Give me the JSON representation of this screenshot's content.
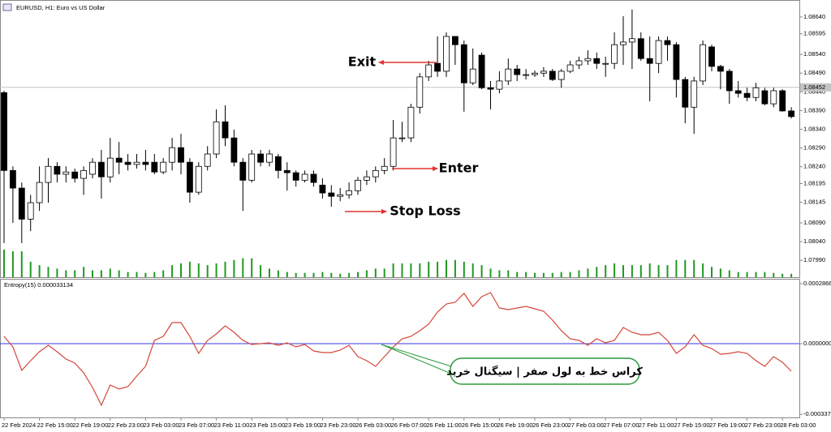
{
  "chart_data": [
    {
      "type": "candlestick",
      "title": "EURUSD, H1:  Euro vs US Dollar",
      "open": [
        1.08438,
        1.0823,
        1.08183,
        1.081,
        1.08144,
        1.08198,
        1.08241,
        1.0822,
        1.08226,
        1.08209,
        1.0822,
        1.08252,
        1.08213,
        1.08263,
        1.08252,
        1.08246,
        1.08252,
        1.08252,
        1.08226,
        1.08252,
        1.08291,
        1.08252,
        1.08172,
        1.08241,
        1.08274,
        1.0836,
        1.08317,
        1.08252,
        1.08204,
        1.08274,
        1.08252,
        1.08267,
        1.0823,
        1.08224,
        1.08204,
        1.0822,
        1.08191,
        1.0817,
        1.08161,
        1.08165,
        1.08176,
        1.08204,
        1.08213,
        1.0823,
        1.08241,
        1.08317,
        1.08317,
        1.08399,
        1.0848,
        1.08516,
        1.08495,
        1.08588,
        1.08566,
        1.08464,
        1.08538,
        1.08451,
        1.08447,
        1.08469,
        1.08501,
        1.08486,
        1.08486,
        1.0849,
        1.08495,
        1.08473,
        1.08495,
        1.08512,
        1.08523,
        1.08529,
        1.08516,
        1.08516,
        1.08566,
        1.08573,
        1.08582,
        1.08529,
        1.08516,
        1.08577,
        1.08566,
        1.08473,
        1.08399,
        1.08469,
        1.0856,
        1.08508,
        1.08495,
        1.08443,
        1.08436,
        1.08425,
        1.08443,
        1.08408,
        1.08443,
        1.08389
      ],
      "high": [
        1.08443,
        1.08241,
        1.08198,
        1.08165,
        1.08241,
        1.08263,
        1.08252,
        1.08241,
        1.08235,
        1.08241,
        1.08263,
        1.08285,
        1.08317,
        1.08306,
        1.08274,
        1.08274,
        1.08285,
        1.08274,
        1.08263,
        1.08317,
        1.08328,
        1.08263,
        1.08252,
        1.08295,
        1.08393,
        1.08404,
        1.08339,
        1.08263,
        1.08285,
        1.08285,
        1.08285,
        1.08274,
        1.08252,
        1.0823,
        1.0823,
        1.0823,
        1.08209,
        1.08191,
        1.08183,
        1.08198,
        1.08213,
        1.0823,
        1.08241,
        1.08263,
        1.08365,
        1.0836,
        1.08408,
        1.0849,
        1.08523,
        1.08588,
        1.08599,
        1.08588,
        1.08577,
        1.08556,
        1.08545,
        1.08469,
        1.08495,
        1.08529,
        1.08512,
        1.08501,
        1.08497,
        1.08506,
        1.08501,
        1.08501,
        1.08523,
        1.08534,
        1.08551,
        1.08545,
        1.08534,
        1.08599,
        1.08642,
        1.0866,
        1.08599,
        1.08588,
        1.08588,
        1.08588,
        1.08573,
        1.0848,
        1.0848,
        1.08577,
        1.08566,
        1.08512,
        1.08501,
        1.08469,
        1.08451,
        1.08464,
        1.08451,
        1.08451,
        1.08447,
        1.08399
      ],
      "low": [
        1.08036,
        1.0809,
        1.08036,
        1.08068,
        1.08122,
        1.08144,
        1.08198,
        1.08198,
        1.08198,
        1.08165,
        1.08209,
        1.08155,
        1.08198,
        1.0822,
        1.0823,
        1.08235,
        1.0823,
        1.0822,
        1.0822,
        1.0823,
        1.0822,
        1.08144,
        1.08165,
        1.0823,
        1.08263,
        1.08295,
        1.08241,
        1.08122,
        1.08198,
        1.08241,
        1.08241,
        1.08209,
        1.08176,
        1.08187,
        1.08198,
        1.08187,
        1.08155,
        1.08133,
        1.08148,
        1.08155,
        1.08165,
        1.08191,
        1.08198,
        1.0822,
        1.0823,
        1.08306,
        1.08306,
        1.08382,
        1.08469,
        1.0848,
        1.0848,
        1.08512,
        1.08387,
        1.08458,
        1.08447,
        1.08393,
        1.08436,
        1.08458,
        1.08469,
        1.08473,
        1.0848,
        1.0848,
        1.08469,
        1.08451,
        1.0849,
        1.08501,
        1.08512,
        1.08501,
        1.0848,
        1.08501,
        1.08512,
        1.08501,
        1.08523,
        1.08415,
        1.0849,
        1.08523,
        1.08425,
        1.08356,
        1.08328,
        1.08458,
        1.08495,
        1.08447,
        1.08408,
        1.08425,
        1.08415,
        1.08415,
        1.08404,
        1.08399,
        1.08387,
        1.08369
      ],
      "close": [
        1.0823,
        1.08183,
        1.081,
        1.08144,
        1.08198,
        1.08241,
        1.0822,
        1.08226,
        1.08209,
        1.0823,
        1.08252,
        1.08213,
        1.08263,
        1.08252,
        1.08246,
        1.08252,
        1.08246,
        1.08226,
        1.08252,
        1.08291,
        1.08252,
        1.08172,
        1.08241,
        1.08274,
        1.0836,
        1.08317,
        1.08252,
        1.08204,
        1.08274,
        1.08252,
        1.08274,
        1.0823,
        1.08224,
        1.08204,
        1.0822,
        1.08198,
        1.0817,
        1.08161,
        1.08165,
        1.08176,
        1.08204,
        1.08213,
        1.0823,
        1.08241,
        1.08317,
        1.08317,
        1.08399,
        1.0848,
        1.08512,
        1.08495,
        1.08588,
        1.08566,
        1.08464,
        1.08501,
        1.08451,
        1.08447,
        1.08469,
        1.08501,
        1.08486,
        1.08486,
        1.0849,
        1.08495,
        1.08473,
        1.08495,
        1.08512,
        1.08523,
        1.08529,
        1.08516,
        1.08516,
        1.08566,
        1.08573,
        1.08582,
        1.08529,
        1.08516,
        1.08577,
        1.08566,
        1.08473,
        1.08399,
        1.08469,
        1.08566,
        1.08508,
        1.08495,
        1.08443,
        1.08436,
        1.08425,
        1.08451,
        1.08408,
        1.08443,
        1.08389,
        1.08374
      ],
      "volume": [
        3200,
        3000,
        3000,
        1800,
        1400,
        1200,
        1000,
        800,
        800,
        1200,
        800,
        800,
        1000,
        800,
        600,
        600,
        500,
        600,
        800,
        1400,
        1600,
        1800,
        1600,
        1400,
        1600,
        1800,
        2000,
        2200,
        2200,
        1400,
        1000,
        800,
        600,
        500,
        500,
        500,
        600,
        500,
        400,
        500,
        600,
        800,
        1000,
        1000,
        1600,
        1600,
        1600,
        1600,
        1800,
        1800,
        2000,
        2000,
        1800,
        1600,
        1400,
        1000,
        800,
        800,
        600,
        600,
        500,
        500,
        500,
        600,
        600,
        800,
        1000,
        1200,
        1400,
        1600,
        1400,
        1400,
        1400,
        1600,
        1400,
        1400,
        2000,
        2000,
        2000,
        1600,
        1200,
        1000,
        800,
        600,
        600,
        600,
        600,
        500,
        400,
        400
      ],
      "up_color": "#ffffff",
      "down_color": "#000000",
      "volume_color": "#1f9a1f",
      "ylim": [
        1.07945,
        1.08668
      ],
      "yticks": [
        {
          "value": 1.0864,
          "label": "1.08640"
        },
        1.08595,
        {
          "value": 1.0854,
          "label": "1.08540"
        },
        {
          "value": 1.0849,
          "label": "1.08490"
        },
        {
          "value": 1.0844,
          "label": "1.08440"
        },
        {
          "value": 1.0839,
          "label": "1.08390"
        },
        {
          "value": 1.0834,
          "label": "1.08340"
        },
        {
          "value": 1.0829,
          "label": "1.08290"
        },
        {
          "value": 1.0824,
          "label": "1.08240"
        },
        1.08195,
        1.08145,
        {
          "value": 1.0809,
          "label": "1.08090"
        },
        {
          "value": 1.0804,
          "label": "1.08040"
        },
        {
          "value": 1.0799,
          "label": "1.07990"
        }
      ],
      "current_price": 1.08452,
      "annotations": [
        {
          "text": "Exit",
          "color": "#2250d8"
        },
        {
          "text": "Enter",
          "color": "#1f9a3a"
        },
        {
          "text": "Stop Loss",
          "color": "#e2332f"
        }
      ]
    },
    {
      "type": "line",
      "title": "Entropy(15) 0.000033134",
      "categories": [
        "22 Feb 2024",
        null,
        null,
        null,
        "22 Feb 15:00",
        null,
        null,
        null,
        "22 Feb 19:00",
        null,
        null,
        null,
        "22 Feb 23:00",
        null,
        null,
        null,
        "23 Feb 03:00",
        null,
        null,
        null,
        "23 Feb 07:00",
        null,
        null,
        null,
        "23 Feb 11:00",
        null,
        null,
        null,
        "23 Feb 15:00",
        null,
        null,
        null,
        "23 Feb 19:00",
        null,
        null,
        null,
        "23 Feb 23:00",
        null,
        null,
        null,
        "26 Feb 03:00",
        null,
        null,
        null,
        "26 Feb 07:00",
        null,
        null,
        null,
        "26 Feb 11:00",
        null,
        null,
        null,
        "26 Feb 15:00",
        null,
        null,
        null,
        "26 Feb 19:00",
        null,
        null,
        null,
        "26 Feb 23:00",
        null,
        null,
        null,
        "27 Feb 03:00",
        null,
        null,
        null,
        "27 Feb 07:00",
        null,
        null,
        null,
        "27 Feb 11:00",
        null,
        null,
        null,
        "27 Feb 15:00",
        null,
        null,
        null,
        "27 Feb 19:00",
        null,
        null,
        null,
        "27 Feb 23:00",
        null,
        null,
        null,
        "28 Feb 03:00",
        null
      ],
      "values": [
        3.49e-05,
        -1.55e-05,
        -0.0001278,
        -8.13e-05,
        -3.87e-05,
        -7.7e-06,
        -3.87e-05,
        -7.36e-05,
        -9.3e-05,
        -0.0001394,
        -0.0002091,
        -0.0002943,
        -0.0001975,
        -0.0002169,
        -0.0002053,
        -0.000155,
        -0.0001084,
        1.55e-05,
        3.49e-05,
        0.0001007,
        0.0001007,
        3.49e-05,
        -4.65e-05,
        1.55e-05,
        4.65e-05,
        8.52e-05,
        5.42e-05,
        1.55e-05,
        -3.9e-06,
        0,
        3.9e-06,
        -7.7e-06,
        3.9e-06,
        -1.55e-05,
        -3.9e-06,
        -3.49e-05,
        -4.26e-05,
        -4.26e-05,
        -3.1e-05,
        -7.7e-06,
        -6.2e-05,
        -8.13e-05,
        -0.0001084,
        -6.2e-05,
        -1.55e-05,
        2.32e-05,
        3.49e-05,
        6.2e-05,
        9.3e-05,
        0.000151,
        0.0001898,
        0.0001975,
        0.0002401,
        0.0001782,
        0.0002246,
        0.000244,
        0.0001704,
        0.0001627,
        0.0001704,
        0.0001782,
        0.0001665,
        0.0001549,
        0.0001123,
        6.2e-05,
        2.32e-05,
        1.55e-05,
        -7.7e-06,
        2.32e-05,
        3.9e-06,
        1.55e-05,
        7.75e-05,
        5.42e-05,
        4.26e-05,
        4.26e-05,
        5.42e-05,
        1.55e-05,
        -4.65e-05,
        -1.55e-05,
        4.26e-05,
        -7.7e-06,
        -2.32e-05,
        -5.03e-05,
        -4.65e-05,
        -3.87e-05,
        -4.65e-05,
        -8.13e-05,
        -0.0001084,
        -6.2e-05,
        -8.91e-05,
        -0.0001317
      ],
      "color": "#d4463a",
      "level_color": "#3a3ae0",
      "ylim": [
        -0.0003563,
        0.0003021
      ],
      "yticks": [
        0.00028663,
        {
          "value": 0,
          "label": "0.0000000"
        },
        -0.00033783
      ],
      "annotation": "کراس خط به لول صفر | سیگنال خرید",
      "annotation_color": "#2a9a3a"
    }
  ]
}
